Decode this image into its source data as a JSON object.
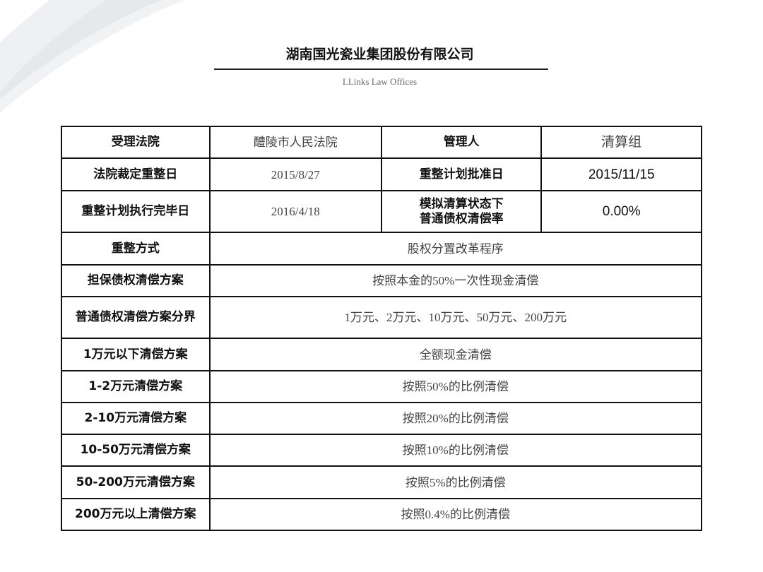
{
  "header": {
    "title": "湖南国光瓷业集团股份有限公司",
    "subtitle": "LLinks Law Offices"
  },
  "table": {
    "court_label": "受理法院",
    "court": "醴陵市人民法院",
    "admin_label": "管理人",
    "admin": "清算组",
    "ruling_label": "法院裁定重整日",
    "ruling": "2015/8/27",
    "approve_label": "重整计划批准日",
    "approve": "2015/11/15",
    "complete_label": "重整计划执行完毕日",
    "complete": "2016/4/18",
    "rate_label_1": "模拟清算状态下",
    "rate_label_2": "普通债权清偿率",
    "rate": "0.00%",
    "rows": [
      {
        "label": "重整方式",
        "value": "股权分置改革程序"
      },
      {
        "label": "担保债权清偿方案",
        "value": "按照本金的50%一次性现金清偿"
      },
      {
        "label": "普通债权清偿方案分界",
        "value": "1万元、2万元、10万元、50万元、200万元"
      },
      {
        "label": "1万元以下清偿方案",
        "value": "全额现金清偿"
      },
      {
        "label": "1-2万元清偿方案",
        "value": "按照50%的比例清偿"
      },
      {
        "label": "2-10万元清偿方案",
        "value": "按照20%的比例清偿"
      },
      {
        "label": "10-50万元清偿方案",
        "value": "按照10%的比例清偿"
      },
      {
        "label": "50-200万元清偿方案",
        "value": "按照5%的比例清偿"
      },
      {
        "label": "200万元以上清偿方案",
        "value": "按照0.4%的比例清偿"
      }
    ]
  }
}
